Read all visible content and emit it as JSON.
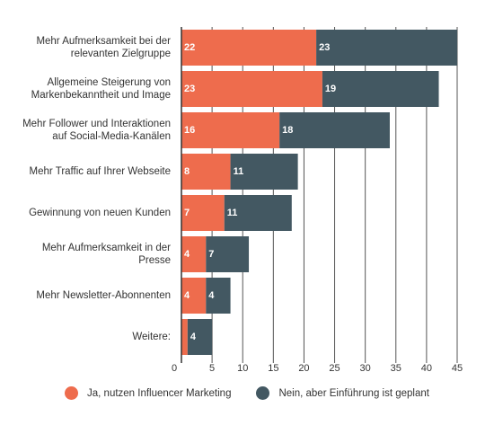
{
  "chart_data": {
    "type": "bar",
    "orientation": "horizontal",
    "stacked": true,
    "categories": [
      [
        "Mehr Aufmerksamkeit bei der",
        "relevanten Zielgruppe"
      ],
      [
        "Allgemeine Steigerung von",
        "Markenbekanntheit und Image"
      ],
      [
        "Mehr Follower und Interaktionen",
        "auf Social-Media-Kanälen"
      ],
      [
        "Mehr Traffic auf Ihrer Webseite"
      ],
      [
        "Gewinnung von neuen Kunden"
      ],
      [
        "Mehr Aufmerksamkeit in der",
        "Presse"
      ],
      [
        "Mehr Newsletter-Abonnenten"
      ],
      [
        "Weitere:"
      ]
    ],
    "series": [
      {
        "name": "Ja, nutzen Influencer Marketing",
        "color": "#ee6c4d",
        "values": [
          22,
          23,
          16,
          8,
          7,
          4,
          4,
          1
        ]
      },
      {
        "name": "Nein, aber Einführung ist geplant",
        "color": "#435862",
        "values": [
          23,
          19,
          18,
          11,
          11,
          7,
          4,
          4
        ]
      }
    ],
    "data_labels": [
      [
        "22",
        "23",
        "16",
        "8",
        "7",
        "4",
        "4",
        ""
      ],
      [
        "23",
        "19",
        "18",
        "11",
        "11",
        "7",
        "4",
        "4"
      ]
    ],
    "xlim": [
      0,
      45
    ],
    "xticks": [
      0,
      5,
      10,
      15,
      20,
      25,
      30,
      35,
      40,
      45
    ],
    "grid": true,
    "legend_position": "bottom"
  }
}
